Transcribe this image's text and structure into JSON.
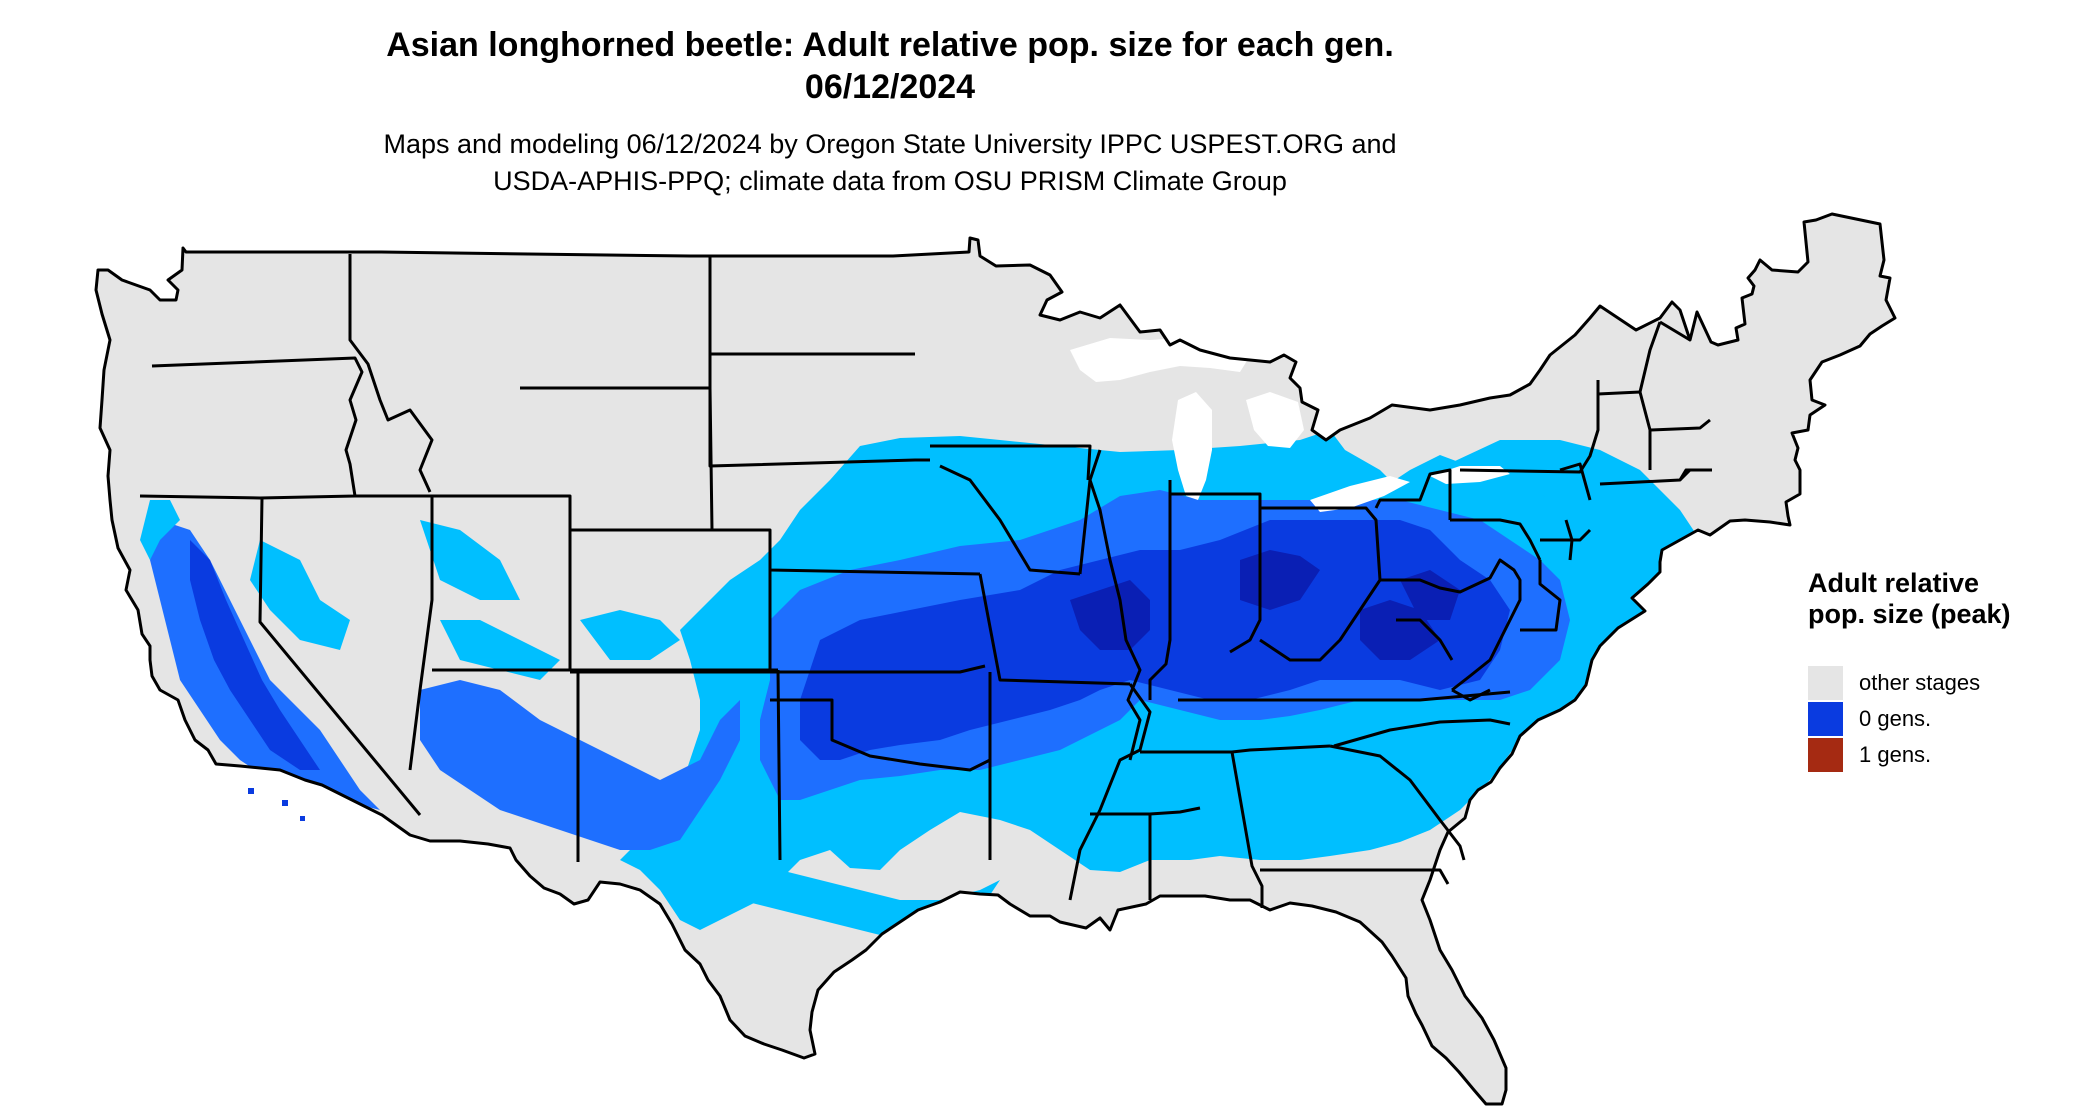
{
  "header": {
    "title_line1": "Asian longhorned beetle: Adult relative pop. size for each gen.",
    "title_line2": "06/12/2024",
    "subtitle_line1": "Maps and modeling 06/12/2024 by Oregon State University IPPC USPEST.ORG and",
    "subtitle_line2": "USDA-APHIS-PPQ; climate data from OSU PRISM Climate Group"
  },
  "legend": {
    "title": "Adult relative pop. size (peak)",
    "items": [
      {
        "label": "other stages",
        "color": "#e5e5e5"
      },
      {
        "label": "0 gens.",
        "color": "#0a3be0"
      },
      {
        "label": "1 gens.",
        "color": "#a52a12"
      }
    ]
  },
  "map": {
    "region": "contiguous United States",
    "colors": {
      "background": "#e5e5e5",
      "light_blue": "#00bfff",
      "mid_blue": "#1e6fff",
      "dark_blue": "#0a3be0",
      "deep_blue": "#0a1fb4",
      "border": "#000000"
    }
  }
}
